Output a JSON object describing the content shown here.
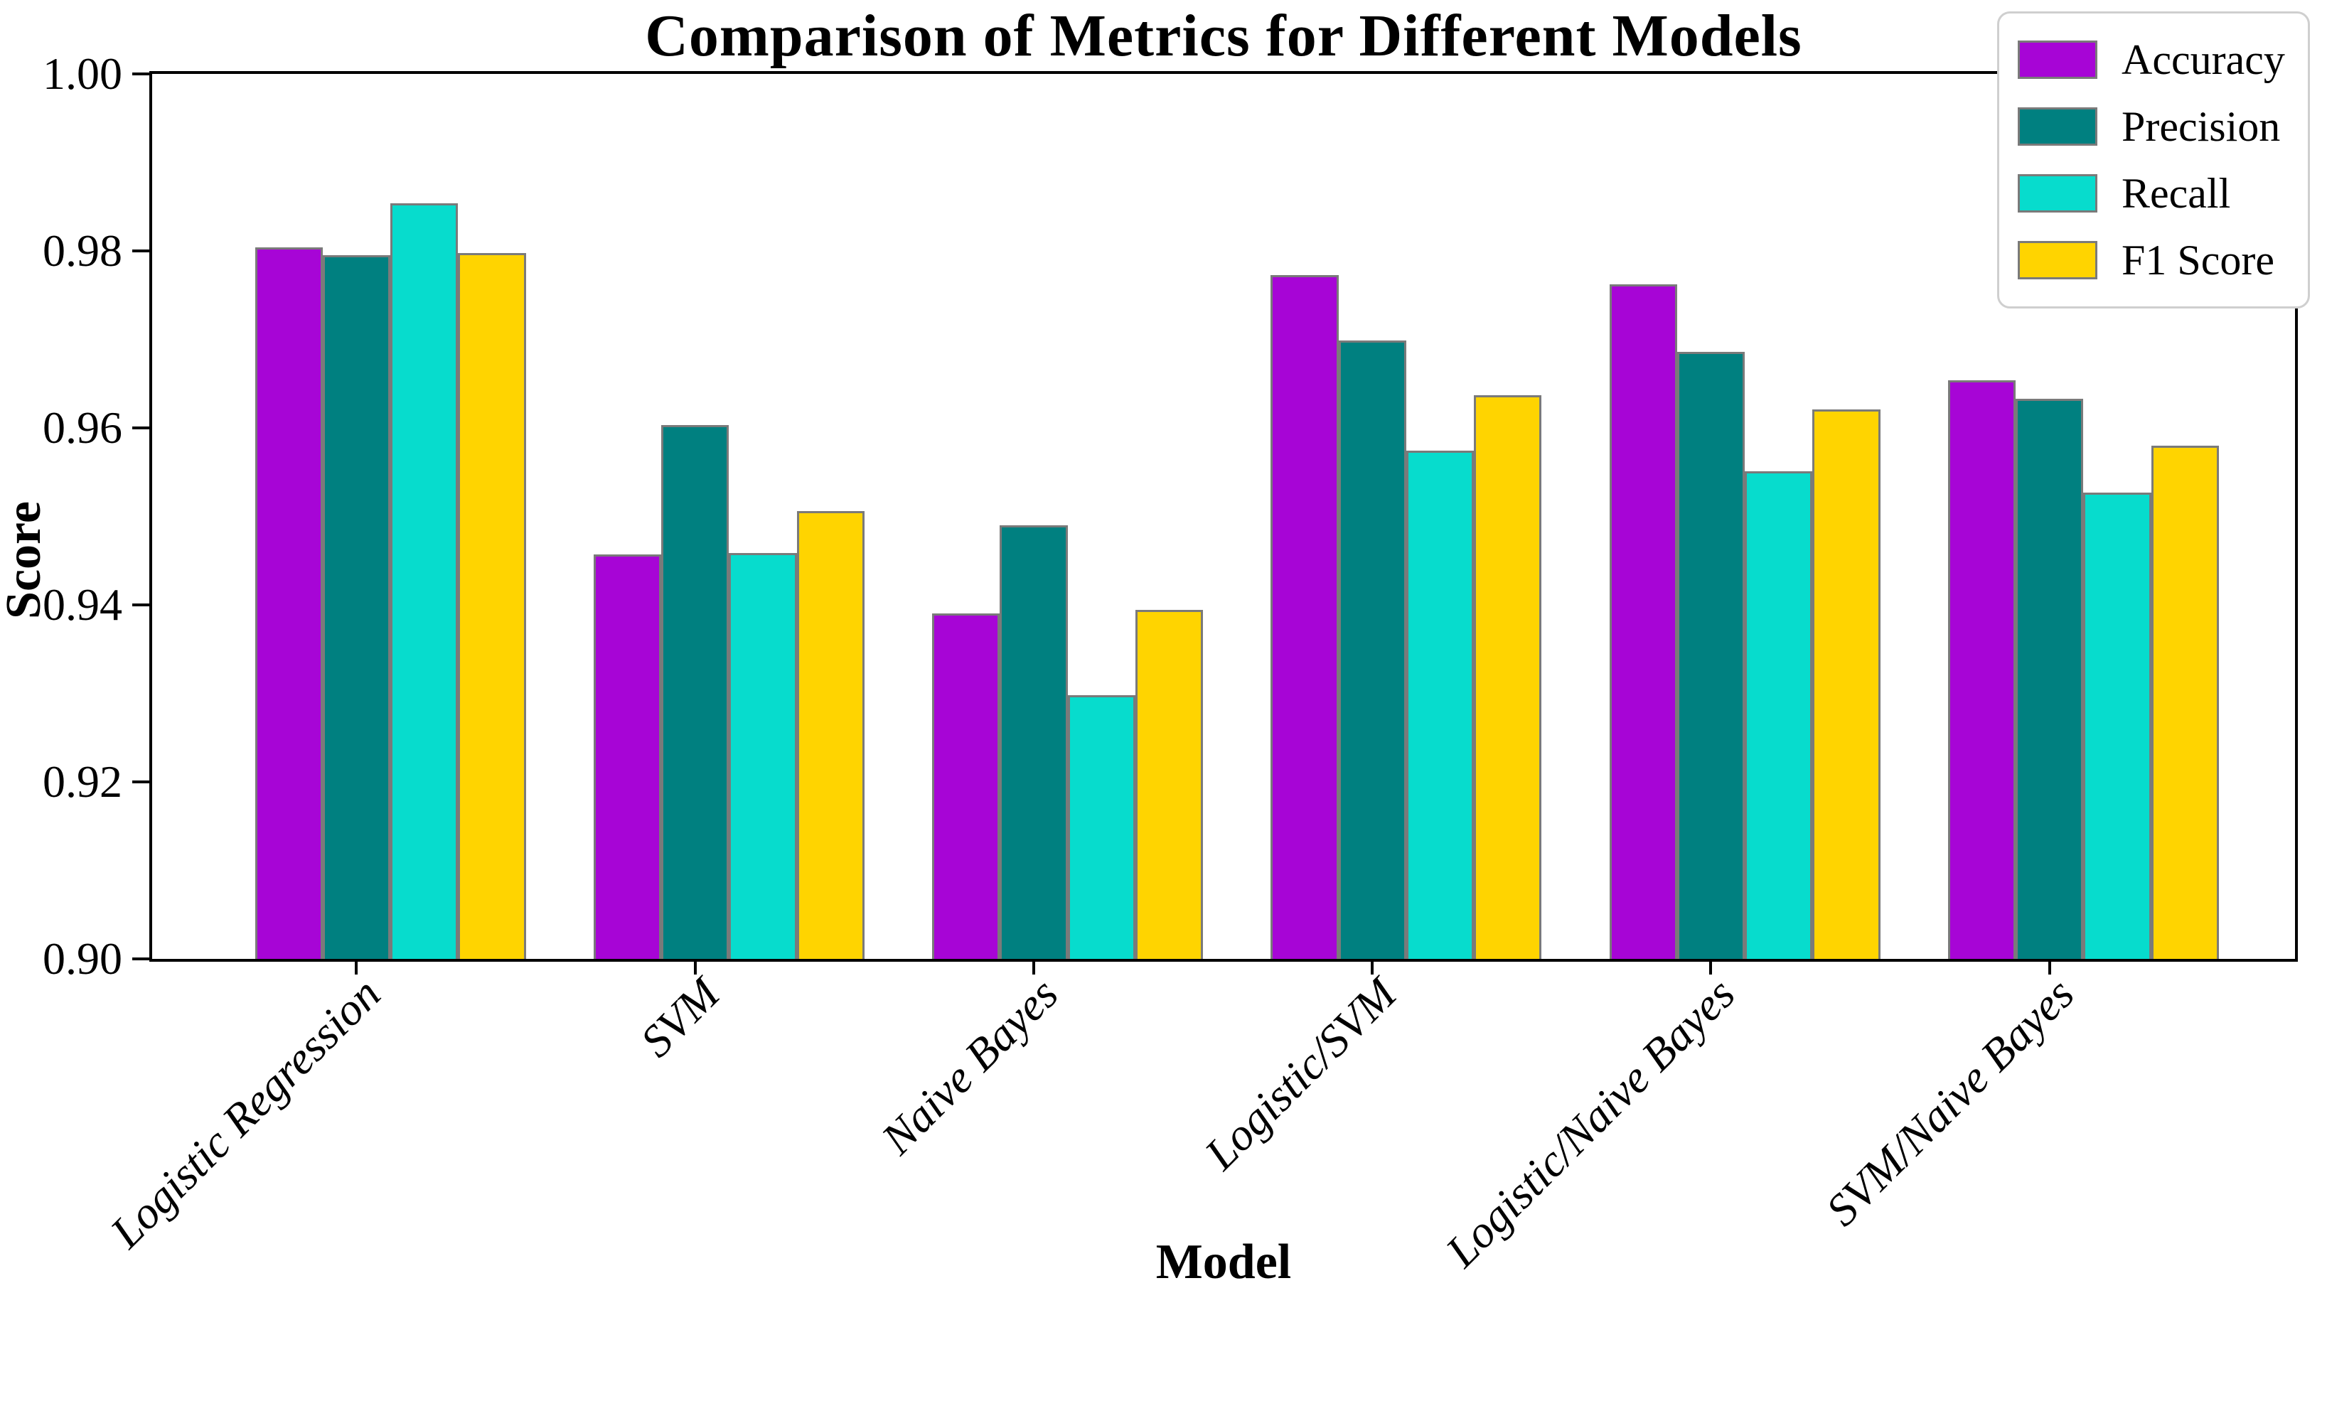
{
  "chart_data": {
    "type": "bar",
    "title": "Comparison of Metrics for Different Models",
    "xlabel": "Model",
    "ylabel": "Score",
    "ylim": [
      0.9,
      1.0
    ],
    "yticks": [
      "1.00",
      "0.98",
      "0.96",
      "0.94",
      "0.92",
      "0.90"
    ],
    "grid": false,
    "legend_position": "upper right",
    "bar_edge_color": "#7a7a7a",
    "categories": [
      "Logistic Regression",
      "SVM",
      "Naive Bayes",
      "Logistic/SVM",
      "Logistic/Naive Bayes",
      "SVM/Naive Bayes"
    ],
    "series": [
      {
        "name": "Accuracy",
        "color": "#A705D6",
        "values": [
          0.9804,
          0.9457,
          0.939,
          0.9773,
          0.9762,
          0.9654
        ]
      },
      {
        "name": "Precision",
        "color": "#008080",
        "values": [
          0.9795,
          0.9603,
          0.949,
          0.9699,
          0.9686,
          0.9633
        ]
      },
      {
        "name": "Recall",
        "color": "#07DCCD",
        "values": [
          0.9854,
          0.9459,
          0.9298,
          0.9574,
          0.9551,
          0.9527
        ]
      },
      {
        "name": "F1 Score",
        "color": "#FFD400",
        "values": [
          0.9798,
          0.9506,
          0.9394,
          0.9637,
          0.9621,
          0.958
        ]
      }
    ]
  }
}
